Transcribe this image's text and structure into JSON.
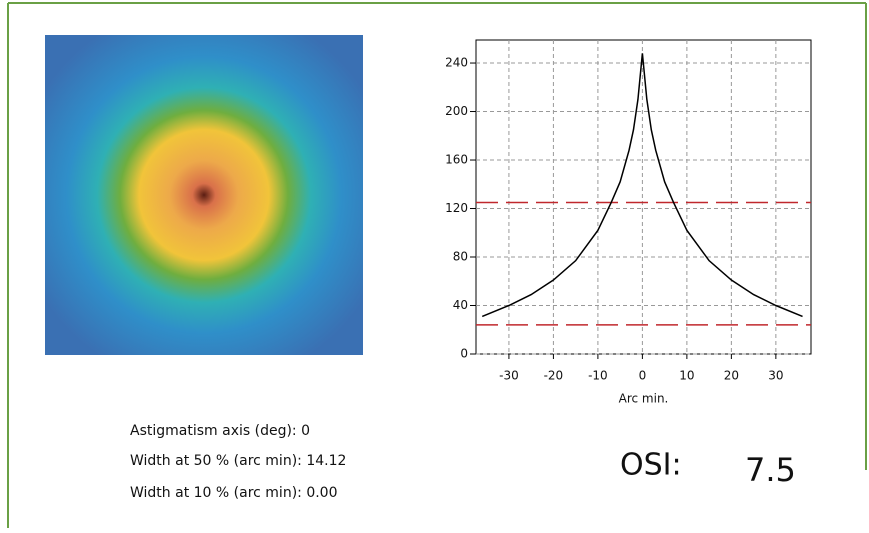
{
  "chart_data": {
    "type": "line",
    "x_label": "Arc min.",
    "x": [
      -36,
      -30,
      -25,
      -20,
      -15,
      -10,
      -7,
      -5,
      -3,
      -2,
      -1,
      0,
      1,
      2,
      3,
      5,
      7,
      10,
      15,
      20,
      25,
      30,
      36
    ],
    "series": [
      {
        "color": "#000000",
        "values": [
          31,
          40,
          49,
          61,
          77,
          102,
          125,
          142,
          168,
          185,
          210,
          248,
          210,
          185,
          168,
          142,
          125,
          102,
          77,
          61,
          49,
          40,
          31
        ]
      }
    ],
    "xlim": [
      -37.4,
      37.9
    ],
    "ylim": [
      0,
      259
    ],
    "xticks": [
      -30,
      -20,
      -10,
      0,
      10,
      20,
      30
    ],
    "yticks": [
      0,
      40,
      80,
      120,
      160,
      200,
      240
    ],
    "grid": true,
    "reference_lines": [
      125,
      24
    ],
    "reference_color": "#c0282d"
  },
  "measurements": {
    "lines": [
      "Astigmatism axis (deg): 0",
      "Width at 50 % (arc min): 14.12",
      "Width at 10 % (arc min): 0.00"
    ],
    "osi_label": "OSI:",
    "osi_value": "7.5"
  }
}
